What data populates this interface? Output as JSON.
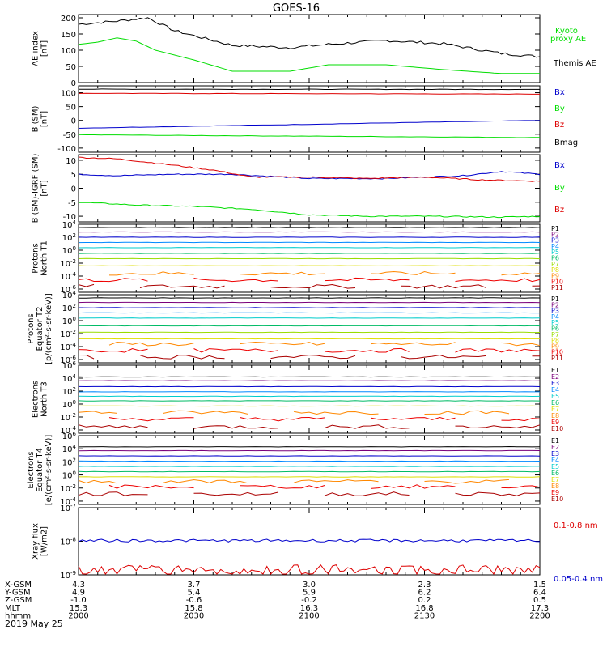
{
  "title": "GOES-16",
  "date": "2019 May 25",
  "colors": {
    "frame": "#000000",
    "black": "#000000",
    "green": "#00dd00",
    "blue": "#0000cc",
    "red": "#dd0000",
    "p_colors": [
      "#000000",
      "#7a007a",
      "#0000cc",
      "#0088ff",
      "#00cccc",
      "#00bb66",
      "#99dd00",
      "#dddd00",
      "#ff8800",
      "#ee0000",
      "#aa0000"
    ],
    "e_colors": [
      "#000000",
      "#7a007a",
      "#0000cc",
      "#0088ff",
      "#00cccc",
      "#00bb66",
      "#dddd00",
      "#ff8800",
      "#ee0000",
      "#aa0000"
    ]
  },
  "footer": {
    "rows": [
      {
        "label": "X-GSM",
        "values": [
          "4.3",
          "3.7",
          "3.0",
          "2.3",
          "1.5"
        ]
      },
      {
        "label": "Y-GSM",
        "values": [
          "4.9",
          "5.4",
          "5.9",
          "6.2",
          "6.4"
        ]
      },
      {
        "label": "Z-GSM",
        "values": [
          "-1.0",
          "-0.6",
          "-0.2",
          "0.2",
          "0.5"
        ]
      },
      {
        "label": "MLT",
        "values": [
          "15.3",
          "15.8",
          "16.3",
          "16.8",
          "17.3"
        ]
      },
      {
        "label": "hhmm",
        "values": [
          "2000",
          "2030",
          "2100",
          "2130",
          "2200"
        ]
      }
    ]
  },
  "chart_data": [
    {
      "id": "ae",
      "type": "line",
      "ylabel": "AE index\n[nT]",
      "yticks": [
        "200",
        "150",
        "100",
        "50",
        "0"
      ],
      "ylim": [
        0,
        210
      ],
      "x_range_hhmm": [
        "2000",
        "2200"
      ],
      "series": [
        {
          "name": "Themis AE",
          "color": "black",
          "x": [
            0,
            5,
            10,
            18,
            25,
            30,
            40,
            55,
            65,
            80,
            95,
            100,
            110,
            120
          ],
          "values": [
            180,
            185,
            190,
            200,
            160,
            145,
            115,
            108,
            118,
            130,
            120,
            110,
            90,
            80
          ]
        },
        {
          "name": "Kyoto proxy AE",
          "color": "green",
          "x": [
            0,
            5,
            10,
            15,
            20,
            30,
            40,
            55,
            65,
            80,
            95,
            110,
            120
          ],
          "values": [
            118,
            125,
            138,
            128,
            100,
            70,
            35,
            35,
            55,
            55,
            40,
            28,
            28
          ]
        }
      ]
    },
    {
      "id": "bsm",
      "type": "line",
      "ylabel": "B (SM)\n[nT]",
      "yticks": [
        "100",
        "50",
        "0",
        "-50",
        "-100"
      ],
      "ylim": [
        -115,
        125
      ],
      "series": [
        {
          "name": "Bx",
          "color": "blue",
          "x": [
            0,
            120
          ],
          "values": [
            -28,
            0
          ]
        },
        {
          "name": "By",
          "color": "green",
          "x": [
            0,
            120
          ],
          "values": [
            -52,
            -62
          ]
        },
        {
          "name": "Bz",
          "color": "red",
          "x": [
            0,
            120
          ],
          "values": [
            98,
            95
          ]
        },
        {
          "name": "Bmag",
          "color": "black",
          "x": [
            0,
            120
          ],
          "values": [
            113,
            112
          ]
        }
      ]
    },
    {
      "id": "bdiff",
      "type": "line",
      "ylabel": "B (SM)-IGRF (SM)\n[nT]",
      "yticks": [
        "10",
        "5",
        "0",
        "-5",
        "-10"
      ],
      "ylim": [
        -12,
        12
      ],
      "series": [
        {
          "name": "Bx",
          "color": "blue",
          "x": [
            0,
            10,
            25,
            40,
            60,
            80,
            100,
            110,
            120
          ],
          "values": [
            5,
            4.5,
            5,
            5,
            3.5,
            3.5,
            4.5,
            6,
            5
          ]
        },
        {
          "name": "By",
          "color": "green",
          "x": [
            0,
            15,
            30,
            45,
            60,
            75,
            90,
            110,
            120
          ],
          "values": [
            -5,
            -6,
            -6.5,
            -7.5,
            -9.5,
            -10,
            -10,
            -10.3,
            -10
          ]
        },
        {
          "name": "Bz",
          "color": "red",
          "x": [
            0,
            10,
            20,
            35,
            45,
            60,
            75,
            90,
            105,
            120
          ],
          "values": [
            11,
            10.5,
            9,
            6.5,
            4,
            4,
            3.5,
            4,
            3,
            2.5
          ]
        }
      ]
    },
    {
      "id": "p1",
      "type": "line",
      "log": true,
      "ylabel": "Protons\nNorth T1",
      "yticks": [
        "10^4",
        "10^2",
        "10^0",
        "10^-2",
        "10^-4",
        "10^-6"
      ],
      "ylim_exp": [
        -6.5,
        4
      ],
      "channels": [
        "P1",
        "P2",
        "P3",
        "P4",
        "P5",
        "P6",
        "P7",
        "P8",
        "P9",
        "P10",
        "P11"
      ],
      "series_levels_exp": [
        3.5,
        2.8,
        2.0,
        1.2,
        0.4,
        -0.5,
        -1.3,
        -2.4,
        -3.6,
        -4.6,
        -5.6
      ]
    },
    {
      "id": "p2",
      "type": "line",
      "log": true,
      "ylabel": "Protons\nEquator T2\n[p/(cm²-s-sr-keV)]",
      "yticks": [
        "10^4",
        "10^2",
        "10^0",
        "10^-2",
        "10^-4",
        "10^-6"
      ],
      "ylim_exp": [
        -6.5,
        4
      ],
      "channels": [
        "P1",
        "P2",
        "P3",
        "P4",
        "P5",
        "P6",
        "P7",
        "P8",
        "P9",
        "P10",
        "P11"
      ],
      "series_levels_exp": [
        3.5,
        2.8,
        2.0,
        1.2,
        0.4,
        -0.8,
        -1.8,
        -2.8,
        -3.6,
        -4.6,
        -5.6
      ]
    },
    {
      "id": "e1",
      "type": "line",
      "log": true,
      "ylabel": "Electrons\nNorth T3",
      "yticks": [
        "10^6",
        "10^4",
        "10^2",
        "10^0",
        "10^-2",
        "10^-4"
      ],
      "ylim_exp": [
        -4.5,
        6
      ],
      "channels": [
        "E1",
        "E2",
        "E3",
        "E4",
        "E5",
        "E6",
        "E7",
        "E8",
        "E9",
        "E10"
      ],
      "series_levels_exp": [
        4.2,
        3.6,
        2.7,
        1.9,
        1.2,
        0.5,
        -0.3,
        -1.3,
        -2.3,
        -3.5
      ]
    },
    {
      "id": "e2",
      "type": "line",
      "log": true,
      "ylabel": "Electrons\nEquator T4\n[e/(cm²-s-sr-keV)]",
      "yticks": [
        "10^6",
        "10^4",
        "10^2",
        "10^0",
        "10^-2",
        "10^-4"
      ],
      "ylim_exp": [
        -4.5,
        6
      ],
      "channels": [
        "E1",
        "E2",
        "E3",
        "E4",
        "E5",
        "E6",
        "E7",
        "E8",
        "E9",
        "E10"
      ],
      "series_levels_exp": [
        4.3,
        3.7,
        2.9,
        2.1,
        1.3,
        0.5,
        -0.3,
        -1.0,
        -1.8,
        -2.9
      ]
    },
    {
      "id": "xray",
      "type": "line",
      "log": true,
      "ylabel": "Xray flux\n[W/m2]",
      "yticks": [
        "10^-7",
        "10^-8",
        "10^-9"
      ],
      "ylim_exp": [
        -9,
        -7
      ],
      "series": [
        {
          "name": "0.1-0.8 nm",
          "color": "red",
          "level_exp": -8.85
        },
        {
          "name": "0.05-0.4 nm",
          "color": "blue",
          "level_exp": -7.98
        }
      ]
    }
  ]
}
